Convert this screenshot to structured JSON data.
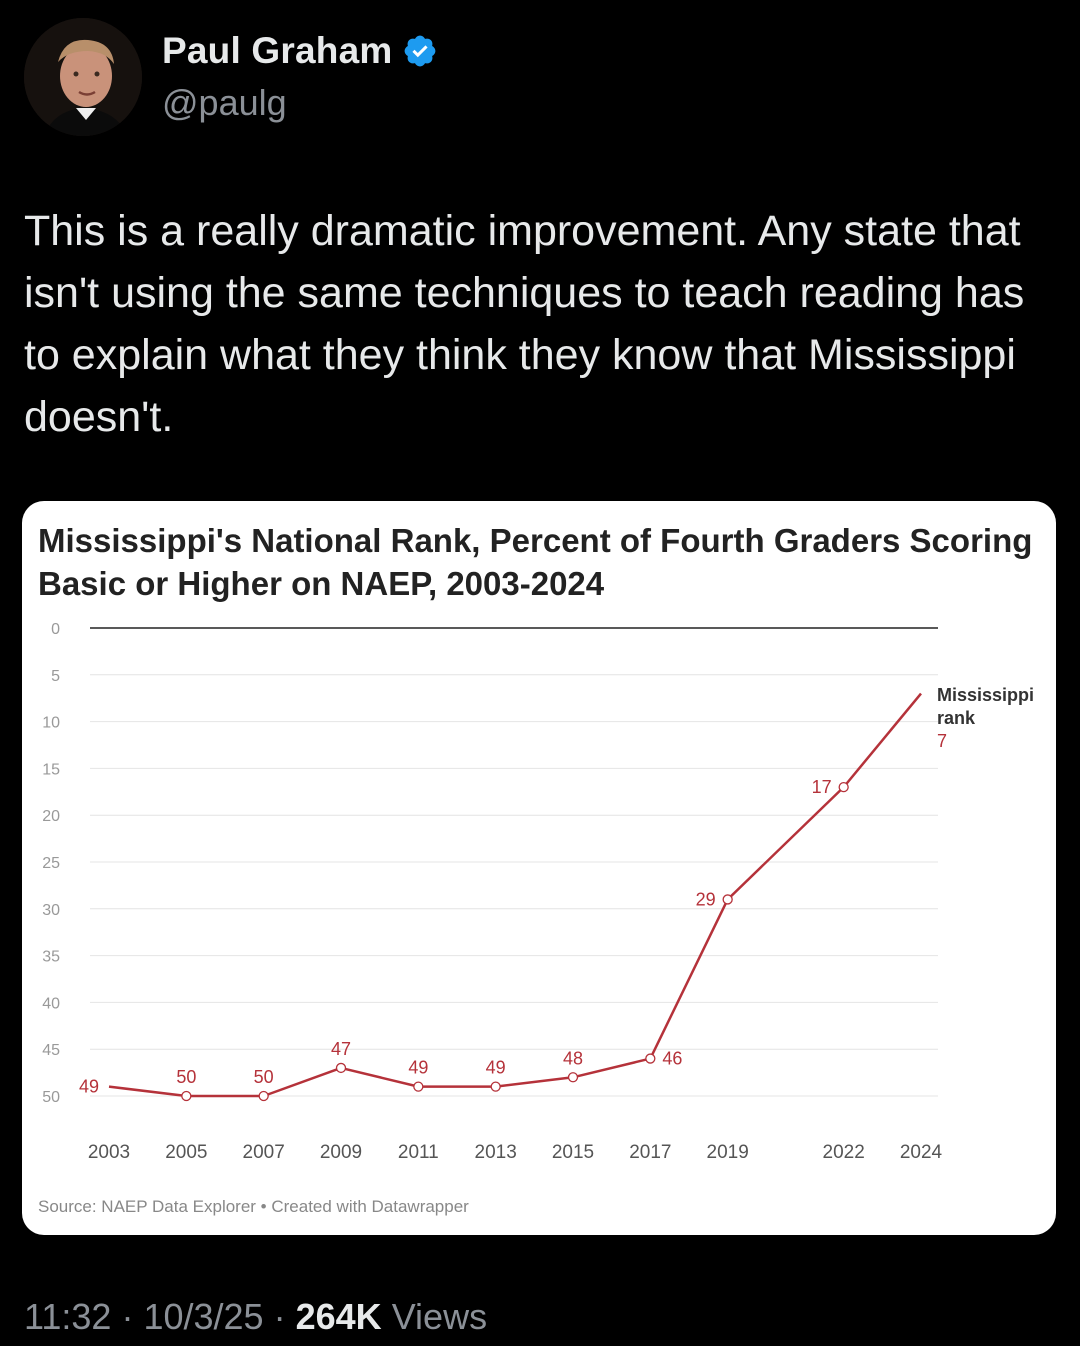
{
  "author": {
    "display_name": "Paul Graham",
    "handle": "@paulg",
    "verified_icon": "verified-badge-icon",
    "badge_color": "#1d9bf0"
  },
  "tweet": {
    "text": "This is a really dramatic improvement. Any state that isn't using the same techniques to teach reading has to explain what they think they know that Mississippi doesn't."
  },
  "meta": {
    "time": "11:32",
    "date": "10/3/25",
    "separator": "·",
    "views_count": "264K",
    "views_label": "Views"
  },
  "chart_card": {
    "source": "Source: NAEP Data Explorer • Created with Datawrapper"
  },
  "chart_data": {
    "type": "line",
    "title": "Mississippi's National Rank, Percent of Fourth Graders Scoring Basic or Higher on NAEP, 2003-2024",
    "xlabel": "",
    "ylabel": "",
    "y_reversed": true,
    "ylim": [
      0,
      50
    ],
    "yticks": [
      0,
      5,
      10,
      15,
      20,
      25,
      30,
      35,
      40,
      45,
      50
    ],
    "x": [
      2003,
      2005,
      2007,
      2009,
      2011,
      2013,
      2015,
      2017,
      2019,
      2022,
      2024
    ],
    "xticks": [
      2003,
      2005,
      2007,
      2009,
      2011,
      2013,
      2015,
      2017,
      2019,
      2022,
      2024
    ],
    "series": [
      {
        "name": "Mississippi rank",
        "values": [
          49,
          50,
          50,
          47,
          49,
          49,
          48,
          46,
          29,
          17,
          7
        ],
        "color": "#b5323a"
      }
    ],
    "end_label_line1": "Mississippi",
    "end_label_line2": "rank",
    "end_label_value": "7",
    "grid": true
  }
}
